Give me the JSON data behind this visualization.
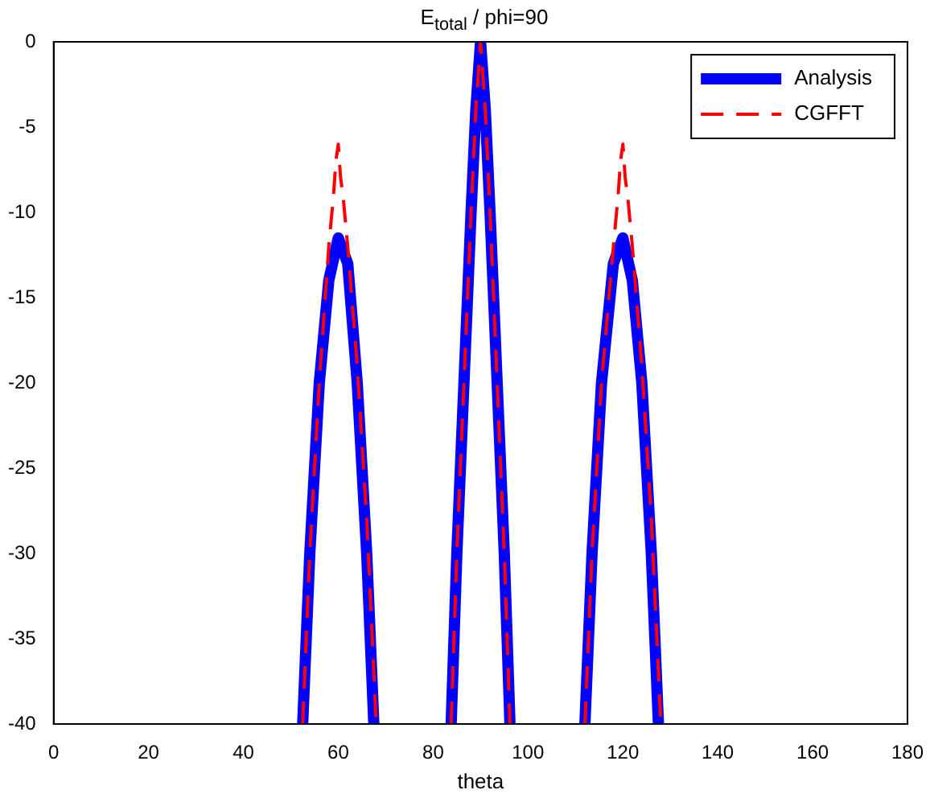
{
  "chart_data": {
    "type": "line",
    "title": "E$_{total}$ / phi=90",
    "xlabel": "theta",
    "xlim": [
      0,
      180
    ],
    "xticks": [
      0,
      20,
      40,
      60,
      80,
      100,
      120,
      140,
      160,
      180
    ],
    "ylim": [
      -40,
      0
    ],
    "yticks": [
      -40,
      -35,
      -30,
      -25,
      -20,
      -15,
      -10,
      -5,
      0
    ],
    "grid": false,
    "legend": "top right",
    "marker": "none",
    "series": [
      {
        "name": "Analysis",
        "color": "#0000ff",
        "line_style": "solid",
        "x": [
          52.5,
          54,
          56,
          58,
          60,
          62,
          64,
          66,
          67.5,
          75,
          83.8,
          85,
          86.5,
          88,
          89,
          90,
          91,
          92,
          93.5,
          95,
          96.2,
          104,
          112,
          113.5,
          115.5,
          118,
          120,
          122,
          124,
          126,
          127.5
        ],
        "values": [
          -40,
          -30,
          -20,
          -14,
          -11.5,
          -13,
          -20,
          -30,
          -40,
          null,
          -40,
          -30,
          -20,
          -10,
          -4,
          0,
          -4,
          -10,
          -20,
          -30,
          -40,
          null,
          -40,
          -30,
          -20,
          -13,
          -11.5,
          -14,
          -20,
          -30,
          -40
        ]
      },
      {
        "name": "CGFFT",
        "color": "#ff0000",
        "line_style": "dashed",
        "x": [
          52.5,
          54,
          56,
          58,
          59,
          59.5,
          60,
          60.5,
          61,
          62,
          64,
          66,
          68,
          75,
          83.8,
          85,
          86.5,
          88,
          89,
          90,
          91,
          92,
          93.5,
          95,
          96.2,
          104,
          112,
          113.5,
          115.5,
          118,
          119,
          119.5,
          120,
          120.5,
          121,
          122,
          124,
          126,
          128
        ],
        "values": [
          -40,
          -30,
          -20,
          -12,
          -9,
          -7,
          -6,
          -8,
          -9,
          -12,
          -19,
          -28,
          -40,
          null,
          -40,
          -30,
          -20,
          -10,
          -4,
          0,
          -4,
          -10,
          -20,
          -30,
          -40,
          null,
          -40,
          -30,
          -20,
          -12,
          -9,
          -7,
          -6,
          -8,
          -9,
          -12,
          -19,
          -28,
          -40
        ]
      }
    ]
  }
}
